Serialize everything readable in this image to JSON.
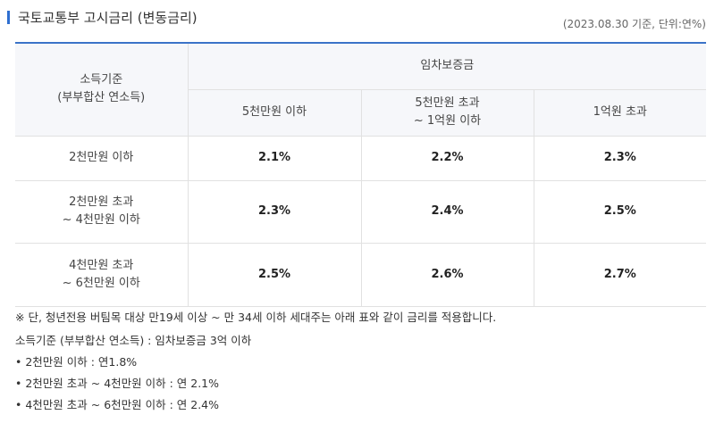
{
  "title": "국토교통부 고시금리 (변동금리)",
  "meta": "(2023.08.30 기준, 단위:연%)",
  "table": {
    "corner_line1": "소득기준",
    "corner_line2": "(부부합산 연소득)",
    "group_header": "임차보증금",
    "col_headers": [
      {
        "line1": "5천만원 이하",
        "line2": ""
      },
      {
        "line1": "5천만원 초과",
        "line2": "~ 1억원 이하"
      },
      {
        "line1": "1억원 초과",
        "line2": ""
      }
    ],
    "rows": [
      {
        "label1": "2천만원 이하",
        "label2": "",
        "values": [
          "2.1%",
          "2.2%",
          "2.3%"
        ]
      },
      {
        "label1": "2천만원 초과",
        "label2": "~ 4천만원 이하",
        "values": [
          "2.3%",
          "2.4%",
          "2.5%"
        ]
      },
      {
        "label1": "4천만원 초과",
        "label2": "~ 6천만원 이하",
        "values": [
          "2.5%",
          "2.6%",
          "2.7%"
        ]
      }
    ]
  },
  "notes": {
    "remark": "※ 단, 청년전용 버팀목 대상 만19세 이상 ~ 만 34세 이하 세대주는 아래 표와 같이 금리를 적용합니다.",
    "criteria": "소득기준 (부부합산 연소득) : 임차보증금 3억 이하",
    "items": [
      "• 2천만원 이하 : 연1.8%",
      "• 2천만원 초과 ~ 4천만원 이하 : 연 2.1%",
      "• 4천만원 초과 ~ 6천만원 이하 : 연 2.4%"
    ]
  }
}
